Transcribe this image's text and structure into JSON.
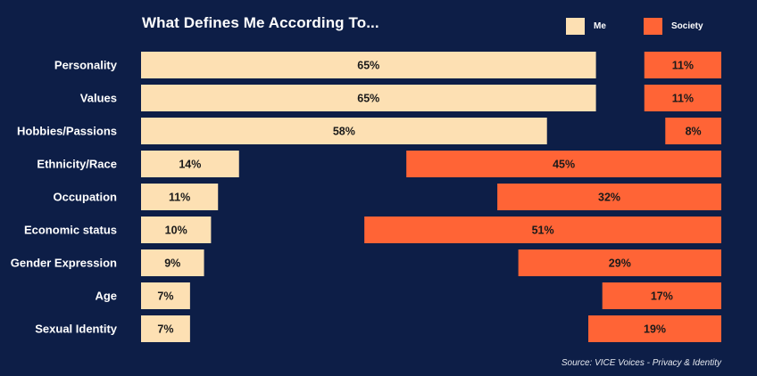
{
  "chart_data": {
    "type": "bar",
    "title": "What Defines Me According To...",
    "categories": [
      "Personality",
      "Values",
      "Hobbies/Passions",
      "Ethnicity/Race",
      "Occupation",
      "Economic status",
      "Gender Expression",
      "Age",
      "Sexual Identity"
    ],
    "series": [
      {
        "name": "Me",
        "values": [
          65,
          65,
          58,
          14,
          11,
          10,
          9,
          7,
          7
        ],
        "color": "#fde0b3"
      },
      {
        "name": "Society",
        "values": [
          11,
          11,
          8,
          45,
          32,
          51,
          29,
          17,
          19
        ],
        "color": "#ff6436"
      }
    ],
    "value_suffix": "%",
    "xlim": [
      0,
      100
    ],
    "orientation": "horizontal",
    "layout_note": "Me bars grow from the left; Society bars grow from the right; legend at top-right",
    "source": "Source: VICE Voices - Privacy & Identity"
  },
  "colors": {
    "background": "#0d1e47",
    "me": "#fde0b3",
    "society": "#ff6436"
  }
}
